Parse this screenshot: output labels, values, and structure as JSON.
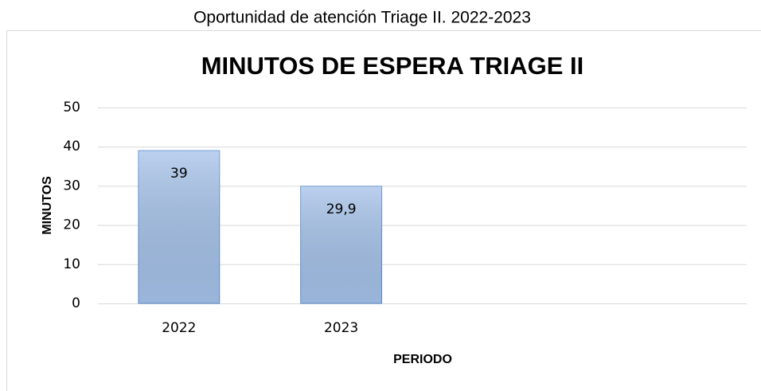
{
  "caption": "Oportunidad de atención Triage II. 2022-2023",
  "chart_data": {
    "type": "bar",
    "title": "MINUTOS DE ESPERA TRIAGE II",
    "x_label": "PERIODO",
    "y_label": "MINUTOS",
    "categories": [
      "2022",
      "2023",
      null,
      null
    ],
    "values": [
      39,
      29.9,
      null,
      null
    ],
    "value_labels": [
      "39",
      "29,9",
      null,
      null
    ],
    "color": "#a4c1e8",
    "edge_color": "#5b8fd0",
    "ylim": [
      0,
      50
    ],
    "yticks": [
      0,
      10,
      20,
      30,
      40,
      50
    ],
    "grid": true
  }
}
